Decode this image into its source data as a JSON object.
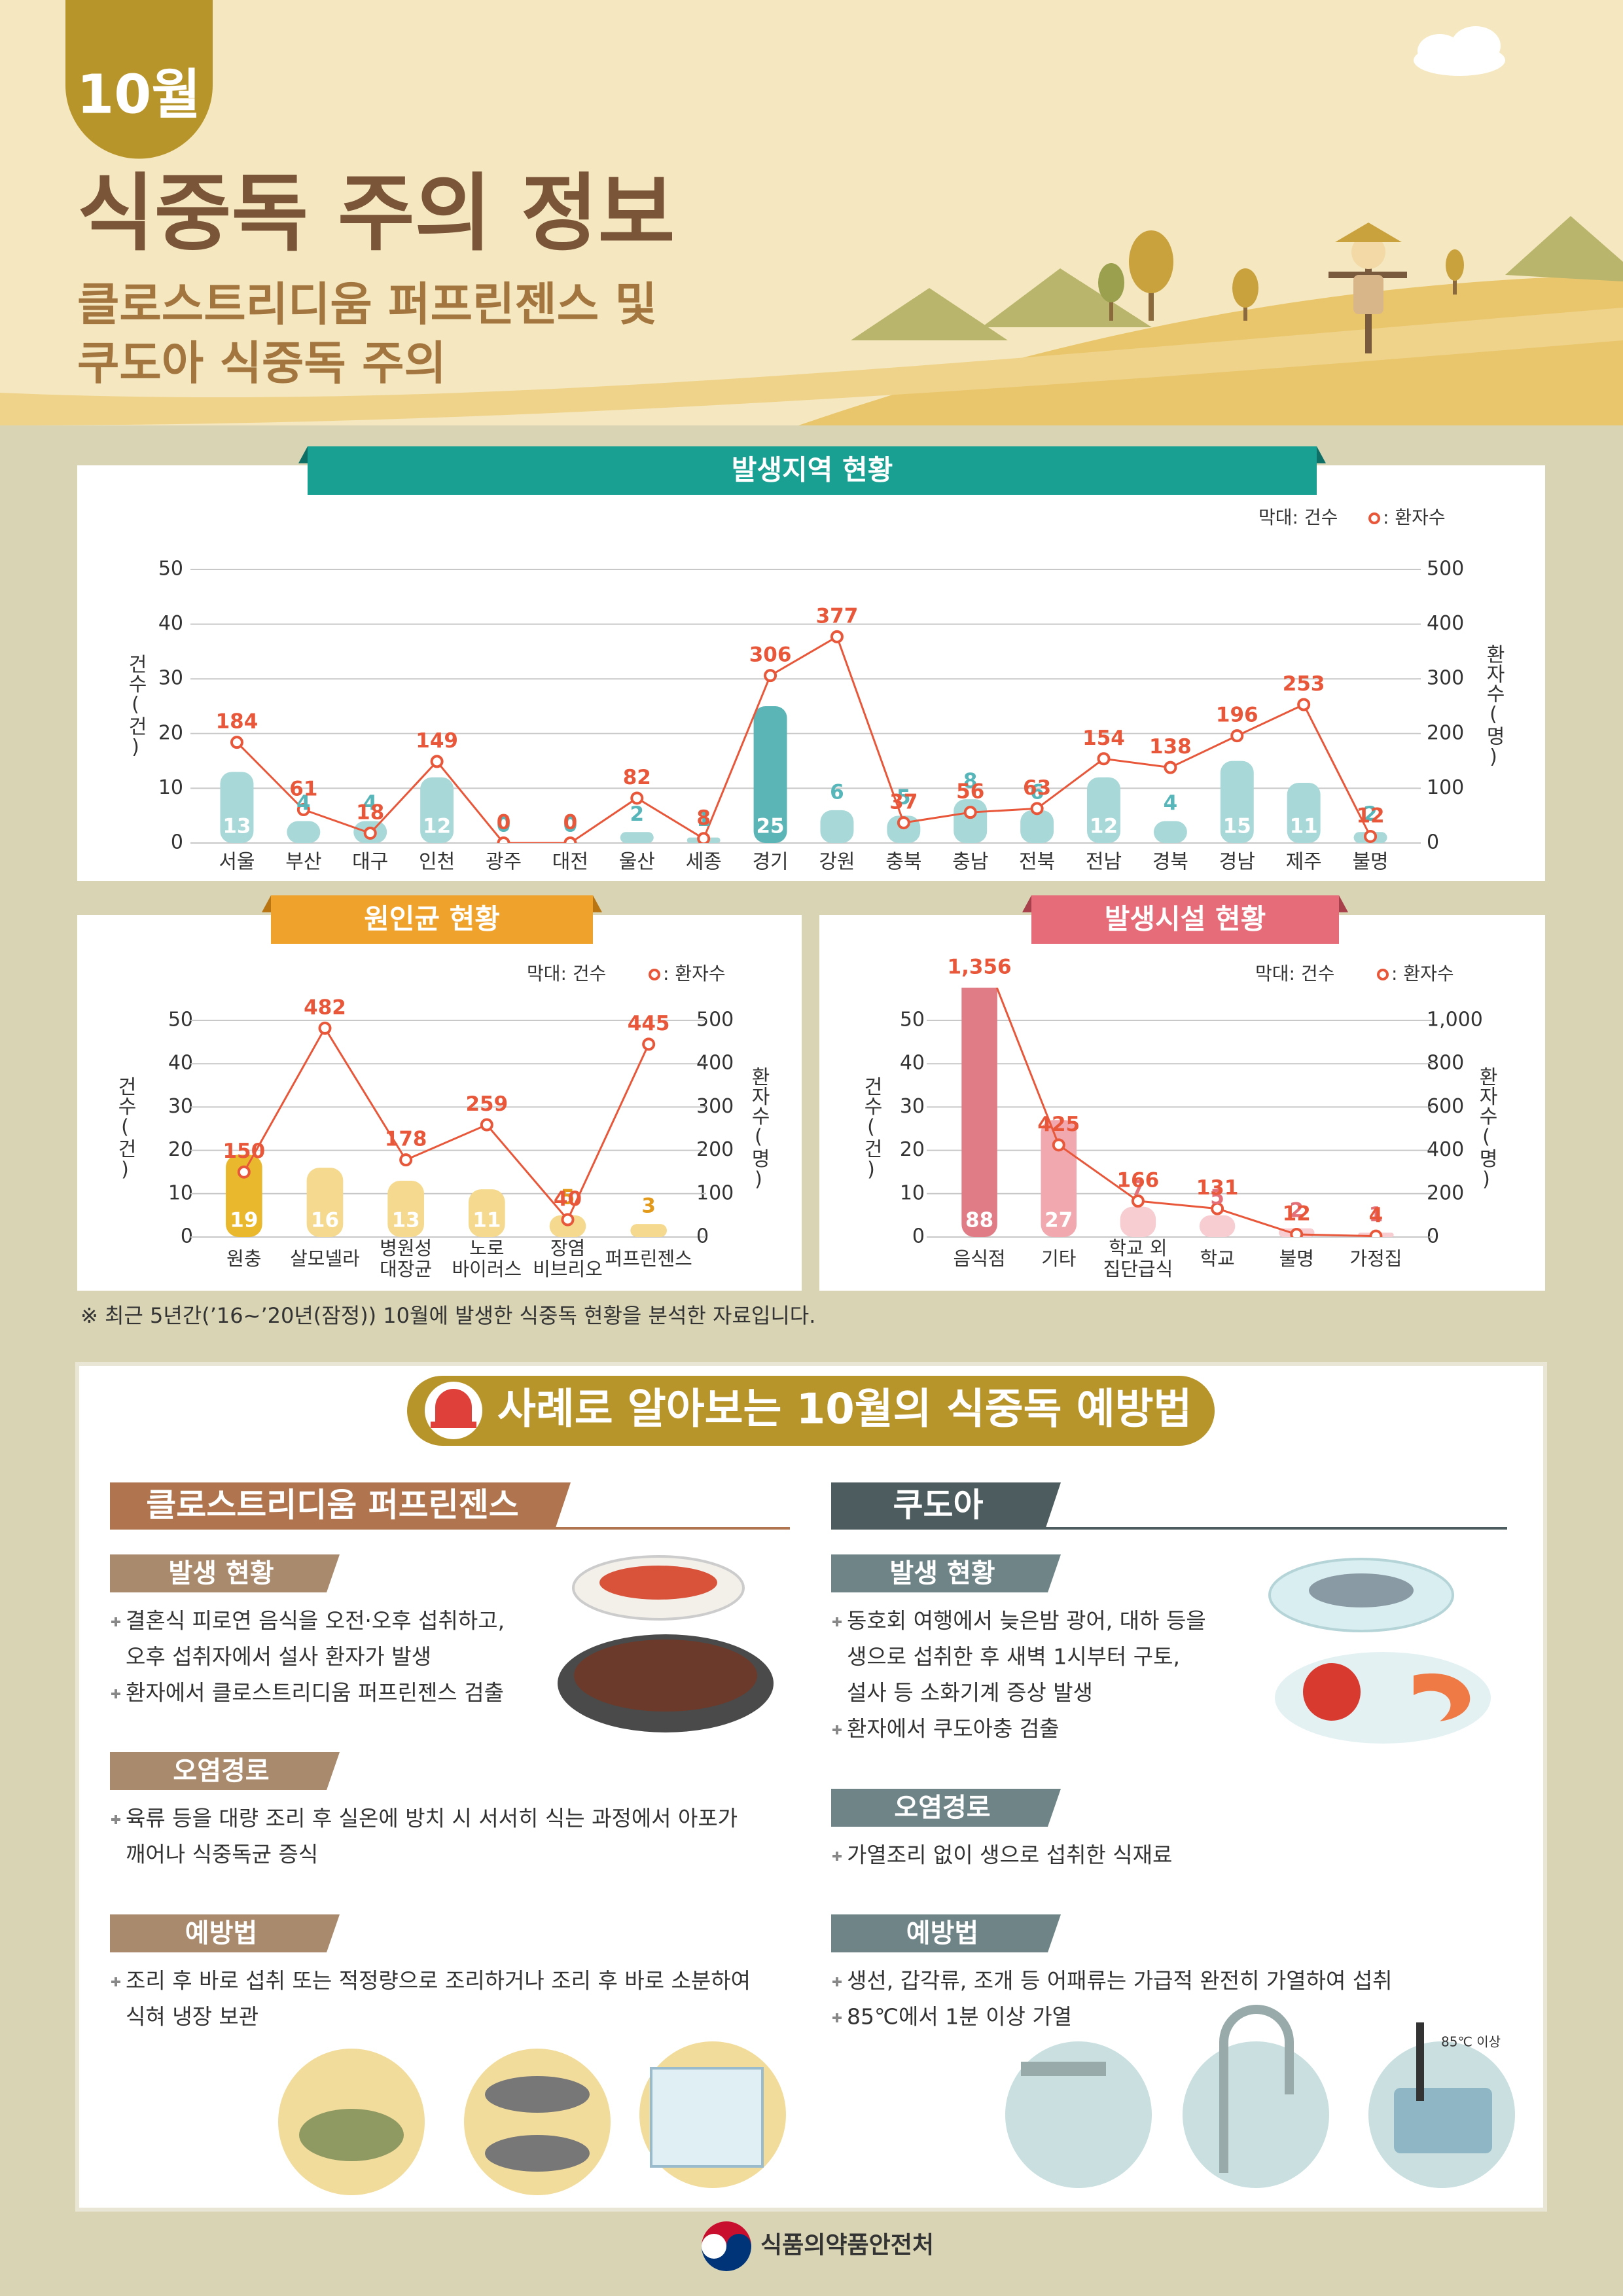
{
  "header": {
    "badge": "10월",
    "title": "식중독 주의 정보",
    "subtitle": [
      "클로스트리디움 퍼프린젠스 및",
      "쿠도아 식중독 주의"
    ]
  },
  "chart_data": [
    {
      "type": "bar",
      "title": "발생지역 현황",
      "legend": "top-right",
      "grid": true,
      "ylabel": "건수(건)",
      "y2label": "환자수(명)",
      "categories": [
        "서울",
        "부산",
        "대구",
        "인천",
        "광주",
        "대전",
        "울산",
        "세종",
        "경기",
        "강원",
        "충북",
        "충남",
        "전북",
        "전남",
        "경북",
        "경남",
        "제주",
        "불명"
      ],
      "series": [
        {
          "name": "막대: 건수",
          "color": "#a9d8d8",
          "colors": [
            "#a9d8d8",
            "#a9d8d8",
            "#a9d8d8",
            "#a9d8d8",
            "#a9d8d8",
            "#a9d8d8",
            "#a9d8d8",
            "#a9d8d8",
            "#5bb5b6",
            "#a9d8d8",
            "#a9d8d8",
            "#a9d8d8",
            "#a9d8d8",
            "#a9d8d8",
            "#a9d8d8",
            "#a9d8d8",
            "#a9d8d8",
            "#a9d8d8"
          ],
          "values": [
            13,
            4,
            4,
            12,
            0,
            0,
            2,
            1,
            25,
            6,
            5,
            8,
            6,
            12,
            4,
            15,
            11,
            2
          ]
        },
        {
          "name": ": 환자수",
          "type": "line",
          "axis": "y2",
          "color": "#e8573a",
          "values": [
            184,
            61,
            18,
            149,
            0,
            0,
            82,
            8,
            306,
            377,
            37,
            56,
            63,
            154,
            138,
            196,
            253,
            12
          ]
        }
      ],
      "ylim": [
        0,
        50
      ],
      "yticks": [
        0,
        10,
        20,
        30,
        40,
        50
      ],
      "y2lim": [
        0,
        500
      ],
      "y2ticks": [
        0,
        100,
        200,
        300,
        400,
        500
      ]
    },
    {
      "type": "bar",
      "title": "원인균 현황",
      "legend": "top-right",
      "grid": true,
      "ylabel": "건수(건)",
      "y2label": "환자수(명)",
      "categories": [
        [
          "원충"
        ],
        [
          "살모넬라"
        ],
        [
          "병원성",
          "대장균"
        ],
        [
          "노로",
          "바이러스"
        ],
        [
          "장염",
          "비브리오"
        ],
        [
          "퍼프린젠스"
        ]
      ],
      "series": [
        {
          "name": "막대: 건수",
          "color": "#f5d98e",
          "colors": [
            "#e9b82c",
            "#f5d98e",
            "#f5d98e",
            "#f5d98e",
            "#f5d98e",
            "#f5d98e"
          ],
          "values": [
            19,
            16,
            13,
            11,
            5,
            3
          ]
        },
        {
          "name": ": 환자수",
          "type": "line",
          "axis": "y2",
          "color": "#e8573a",
          "values": [
            150,
            482,
            178,
            259,
            40,
            445
          ]
        }
      ],
      "ylim": [
        0,
        50
      ],
      "yticks": [
        0,
        10,
        20,
        30,
        40,
        50
      ],
      "y2lim": [
        0,
        500
      ],
      "y2ticks": [
        0,
        100,
        200,
        300,
        400,
        500
      ]
    },
    {
      "type": "bar",
      "title": "발생시설 현황",
      "legend": "top-right",
      "grid": true,
      "ylabel": "건수(건)",
      "y2label": "환자수(명)",
      "categories": [
        [
          "음식점"
        ],
        [
          "기타"
        ],
        [
          "학교 외",
          "집단급식"
        ],
        [
          "학교"
        ],
        [
          "불명"
        ],
        [
          "가정집"
        ]
      ],
      "series": [
        {
          "name": "막대: 건수",
          "color": "#f7cdd1",
          "colors": [
            "#e07c86",
            "#f1a8ae",
            "#f7cdd1",
            "#f7cdd1",
            "#f7cdd1",
            "#f7cdd1"
          ],
          "values": [
            88,
            27,
            7,
            5,
            2,
            1
          ]
        },
        {
          "name": ": 환자수",
          "type": "line",
          "axis": "y2",
          "color": "#e8573a",
          "values": [
            1356,
            425,
            166,
            131,
            12,
            4
          ],
          "value_labels": [
            "1,356",
            "425",
            "166",
            "131",
            "12",
            "4"
          ]
        }
      ],
      "ylim": [
        0,
        50
      ],
      "yticks": [
        0,
        10,
        20,
        30,
        40,
        50
      ],
      "y2lim": [
        0,
        1000
      ],
      "y2ticks": [
        0,
        200,
        400,
        600,
        800,
        {
          "value": 1000,
          "label": "1,000"
        }
      ]
    }
  ],
  "note": "※ 최근 5년간(’16~’20년(잠정)) 10월에 발생한 식중독 현황을 분석한 자료입니다.",
  "prevention": {
    "title": "사례로 알아보는 10월의 식중독 예방법",
    "cases": [
      {
        "name": "클로스트리디움 퍼프린젠스",
        "sections": [
          {
            "heading": "발생 현황",
            "items": [
              [
                "결혼식 피로연 음식을 오전·오후 섭취하고,",
                "오후 섭취자에서 설사 환자가 발생"
              ],
              [
                "환자에서 클로스트리디움 퍼프린젠스 검출"
              ]
            ]
          },
          {
            "heading": "오염경로",
            "items": [
              [
                "육류 등을 대량 조리 후 실온에 방치 시 서서히 식는 과정에서 아포가",
                "깨어나 식중독균 증식"
              ]
            ]
          },
          {
            "heading": "예방법",
            "items": [
              [
                "조리 후 바로 섭취 또는 적정량으로 조리하거나 조리 후 바로 소분하여",
                "식혀 냉장 보관"
              ]
            ]
          }
        ]
      },
      {
        "name": "쿠도아",
        "sections": [
          {
            "heading": "발생 현황",
            "items": [
              [
                "동호회 여행에서 늦은밤 광어, 대하 등을",
                "생으로 섭취한 후 새벽 1시부터 구토,",
                "설사 등 소화기계 증상 발생"
              ],
              [
                "환자에서 쿠도아충 검출"
              ]
            ]
          },
          {
            "heading": "오염경로",
            "items": [
              [
                "가열조리 없이 생으로 섭취한 식재료"
              ]
            ]
          },
          {
            "heading": "예방법",
            "items": [
              [
                "생선, 갑각류,  조개 등 어패류는 가급적 완전히 가열하여 섭취"
              ],
              [
                "85℃에서 1분 이상 가열"
              ]
            ]
          }
        ]
      }
    ]
  },
  "illustration_label": "85℃ 이상",
  "footer": {
    "org": "식품의약품안전처"
  }
}
